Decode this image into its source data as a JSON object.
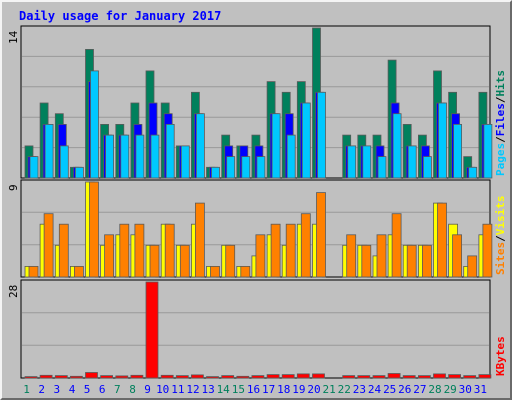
{
  "chart_data": {
    "type": "bar",
    "title": "Daily usage for January 2017",
    "days": [
      "1",
      "2",
      "3",
      "4",
      "5",
      "6",
      "7",
      "8",
      "9",
      "10",
      "11",
      "12",
      "13",
      "14",
      "15",
      "16",
      "17",
      "18",
      "19",
      "20",
      "21",
      "22",
      "23",
      "24",
      "25",
      "26",
      "27",
      "28",
      "29",
      "30",
      "31"
    ],
    "weekend_days": [
      "1",
      "7",
      "8",
      "14",
      "15",
      "21",
      "22",
      "28",
      "29"
    ],
    "panels": [
      {
        "name": "requests",
        "ymax": 14,
        "ymax_label": "14",
        "side_label": [
          "Pages",
          "Files",
          "Hits"
        ],
        "series": [
          {
            "name": "Hits",
            "color": "#00805c",
            "values": [
              3,
              7,
              6,
              1,
              12,
              5,
              5,
              7,
              10,
              7,
              3,
              8,
              1,
              4,
              3,
              4,
              9,
              8,
              9,
              14,
              0,
              4,
              4,
              4,
              11,
              5,
              4,
              10,
              8,
              2,
              8
            ]
          },
          {
            "name": "Files",
            "color": "#0000ff",
            "values": [
              2,
              5,
              5,
              1,
              9,
              4,
              4,
              5,
              7,
              6,
              3,
              6,
              1,
              3,
              3,
              3,
              6,
              6,
              7,
              8,
              0,
              3,
              3,
              3,
              7,
              3,
              3,
              7,
              6,
              1,
              5
            ]
          },
          {
            "name": "Pages",
            "color": "#00c8ff",
            "values": [
              2,
              5,
              3,
              1,
              10,
              4,
              4,
              4,
              4,
              5,
              3,
              6,
              1,
              2,
              2,
              2,
              6,
              4,
              7,
              8,
              0,
              3,
              3,
              2,
              6,
              3,
              2,
              7,
              5,
              1,
              5
            ]
          }
        ]
      },
      {
        "name": "visitors",
        "ymax": 9,
        "ymax_label": "9",
        "side_label": [
          "Sites",
          "Visits"
        ],
        "series": [
          {
            "name": "Visits",
            "color": "#ffff00",
            "values": [
              1,
              5,
              3,
              1,
              9,
              3,
              4,
              4,
              3,
              5,
              3,
              5,
              1,
              3,
              1,
              2,
              4,
              3,
              5,
              5,
              0,
              3,
              3,
              2,
              4,
              3,
              3,
              7,
              5,
              1,
              4
            ]
          },
          {
            "name": "Sites",
            "color": "#ff8000",
            "values": [
              1,
              6,
              5,
              1,
              9,
              4,
              5,
              5,
              3,
              5,
              3,
              7,
              1,
              3,
              1,
              4,
              5,
              5,
              6,
              8,
              0,
              4,
              3,
              4,
              6,
              3,
              3,
              7,
              4,
              2,
              5
            ]
          }
        ]
      },
      {
        "name": "kbytes",
        "ymax": 28,
        "ymax_label": "28",
        "side_label": [
          "KBytes"
        ],
        "series": [
          {
            "name": "KBytes",
            "color": "#ff0000",
            "values": [
              0.4,
              0.8,
              0.7,
              0.5,
              1.6,
              0.7,
              0.6,
              0.8,
              28,
              0.8,
              0.7,
              0.9,
              0.4,
              0.7,
              0.5,
              0.7,
              1,
              1,
              1.2,
              1.2,
              0,
              0.7,
              0.7,
              0.7,
              1.3,
              0.7,
              0.7,
              1.2,
              1,
              0.7,
              1
            ]
          }
        ]
      }
    ],
    "colors": {
      "plot_background": "#c0c0c0",
      "title": "#0000ff",
      "weekday_label": "#0000ff",
      "weekend_label": "#00805c",
      "label_pages": "#00c8ff",
      "label_files": "#0000ff",
      "label_hits": "#00805c",
      "label_sites": "#ff8000",
      "label_visits": "#ffff00",
      "label_kbytes": "#ff0000"
    }
  }
}
